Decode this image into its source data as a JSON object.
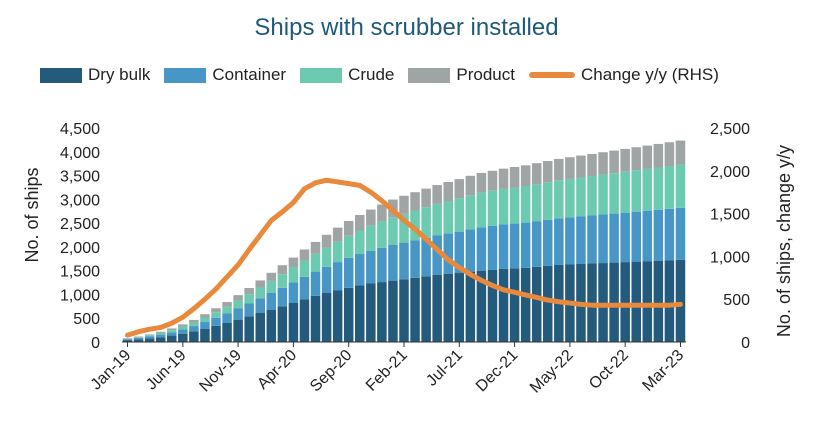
{
  "chart_data": {
    "type": "bar",
    "stacked": true,
    "title": "Ships with scrubber installed",
    "ylabel": "No. of ships",
    "y2label": "No. of ships, change y/y",
    "ylim": [
      0,
      4500
    ],
    "y2lim": [
      0,
      2500
    ],
    "y_ticks": [
      "0",
      "500",
      "1,000",
      "1,500",
      "2,000",
      "2,500",
      "3,000",
      "3,500",
      "4,000",
      "4,500"
    ],
    "y2_ticks": [
      "0",
      "500",
      "1,000",
      "1,500",
      "2,000",
      "2,500"
    ],
    "x_tick_labels": [
      "Jan-19",
      "Jun-19",
      "Nov-19",
      "Apr-20",
      "Sep-20",
      "Feb-21",
      "Jul-21",
      "Dec-21",
      "May-22",
      "Oct-22",
      "Mar-23"
    ],
    "x_tick_every": 5,
    "categories": [
      "Jan-19",
      "Feb-19",
      "Mar-19",
      "Apr-19",
      "May-19",
      "Jun-19",
      "Jul-19",
      "Aug-19",
      "Sep-19",
      "Oct-19",
      "Nov-19",
      "Dec-19",
      "Jan-20",
      "Feb-20",
      "Mar-20",
      "Apr-20",
      "May-20",
      "Jun-20",
      "Jul-20",
      "Aug-20",
      "Sep-20",
      "Oct-20",
      "Nov-20",
      "Dec-20",
      "Jan-21",
      "Feb-21",
      "Mar-21",
      "Apr-21",
      "May-21",
      "Jun-21",
      "Jul-21",
      "Aug-21",
      "Sep-21",
      "Oct-21",
      "Nov-21",
      "Dec-21",
      "Jan-22",
      "Feb-22",
      "Mar-22",
      "Apr-22",
      "May-22",
      "Jun-22",
      "Jul-22",
      "Aug-22",
      "Sep-22",
      "Oct-22",
      "Nov-22",
      "Dec-22",
      "Jan-23",
      "Feb-23",
      "Mar-23"
    ],
    "series": [
      {
        "name": "Dry bulk",
        "color": "#245a7c",
        "values": [
          40,
          55,
          75,
          100,
          135,
          175,
          225,
          280,
          340,
          400,
          470,
          540,
          610,
          680,
          750,
          820,
          900,
          970,
          1030,
          1090,
          1140,
          1190,
          1230,
          1260,
          1290,
          1320,
          1350,
          1380,
          1410,
          1430,
          1450,
          1480,
          1500,
          1520,
          1540,
          1550,
          1560,
          1580,
          1600,
          1620,
          1630,
          1640,
          1650,
          1660,
          1670,
          1680,
          1690,
          1700,
          1710,
          1720,
          1730
        ]
      },
      {
        "name": "Container",
        "color": "#4796c6",
        "values": [
          20,
          30,
          40,
          55,
          70,
          90,
          110,
          140,
          170,
          200,
          235,
          270,
          310,
          350,
          390,
          430,
          470,
          510,
          550,
          590,
          630,
          660,
          690,
          720,
          750,
          770,
          790,
          810,
          830,
          850,
          870,
          890,
          910,
          920,
          930,
          940,
          950,
          960,
          970,
          980,
          990,
          1000,
          1010,
          1020,
          1030,
          1040,
          1050,
          1060,
          1070,
          1080,
          1090
        ]
      },
      {
        "name": "Crude",
        "color": "#6ccab0",
        "values": [
          10,
          15,
          25,
          35,
          45,
          60,
          75,
          95,
          115,
          140,
          165,
          195,
          225,
          255,
          285,
          315,
          345,
          375,
          405,
          435,
          465,
          495,
          525,
          555,
          585,
          605,
          625,
          645,
          665,
          685,
          700,
          715,
          730,
          740,
          750,
          760,
          770,
          780,
          790,
          800,
          810,
          820,
          830,
          840,
          850,
          860,
          870,
          880,
          890,
          900,
          910
        ]
      },
      {
        "name": "Product",
        "color": "#9fa4a4",
        "values": [
          10,
          15,
          20,
          25,
          35,
          45,
          55,
          70,
          85,
          100,
          115,
          130,
          150,
          170,
          190,
          210,
          230,
          250,
          270,
          290,
          310,
          325,
          340,
          355,
          370,
          380,
          385,
          390,
          395,
          400,
          405,
          410,
          415,
          420,
          425,
          430,
          435,
          440,
          445,
          450,
          455,
          460,
          465,
          470,
          475,
          480,
          485,
          490,
          495,
          500,
          505
        ]
      },
      {
        "name": "Change y/y (RHS)",
        "color": "#e8893c",
        "type": "line",
        "values": [
          80,
          120,
          150,
          170,
          220,
          290,
          390,
          500,
          620,
          760,
          900,
          1080,
          1250,
          1420,
          1520,
          1630,
          1790,
          1860,
          1890,
          1870,
          1850,
          1830,
          1750,
          1650,
          1540,
          1420,
          1320,
          1200,
          1080,
          960,
          870,
          790,
          720,
          660,
          610,
          580,
          550,
          520,
          490,
          470,
          455,
          440,
          430,
          430,
          430,
          430,
          430,
          430,
          430,
          430,
          440
        ]
      }
    ]
  }
}
